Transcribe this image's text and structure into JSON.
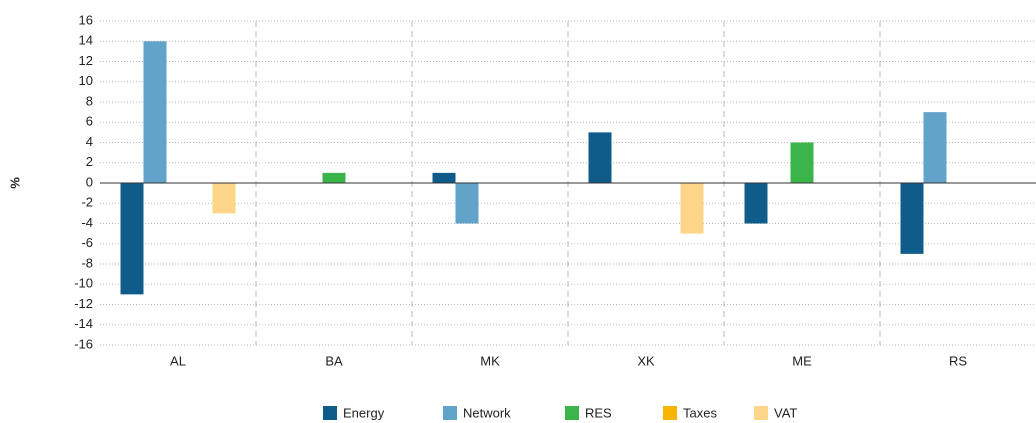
{
  "chart_data": {
    "type": "bar",
    "y_label": "%",
    "categories": [
      "AL",
      "BA",
      "MK",
      "XK",
      "ME",
      "RS"
    ],
    "series": [
      {
        "name": "Energy",
        "color": "#0f5b8a",
        "values": [
          -11,
          0,
          1,
          5,
          -4,
          -7
        ]
      },
      {
        "name": "Network",
        "color": "#62a3c9",
        "values": [
          14,
          0,
          -4,
          0,
          0,
          7
        ]
      },
      {
        "name": "RES",
        "color": "#3bb54a",
        "values": [
          0,
          1,
          0,
          0,
          4,
          0
        ]
      },
      {
        "name": "Taxes",
        "color": "#f7b500",
        "values": [
          0,
          0,
          0,
          0,
          0,
          0
        ]
      },
      {
        "name": "VAT",
        "color": "#fdd68a",
        "values": [
          -3,
          0,
          0,
          -5,
          0,
          0
        ]
      }
    ],
    "ylim": [
      -16,
      16
    ],
    "yticks": [
      -16,
      -14,
      -12,
      -10,
      -8,
      -6,
      -4,
      -2,
      0,
      2,
      4,
      6,
      8,
      10,
      12,
      14,
      16
    ],
    "grid": true,
    "legend": "bottom"
  }
}
